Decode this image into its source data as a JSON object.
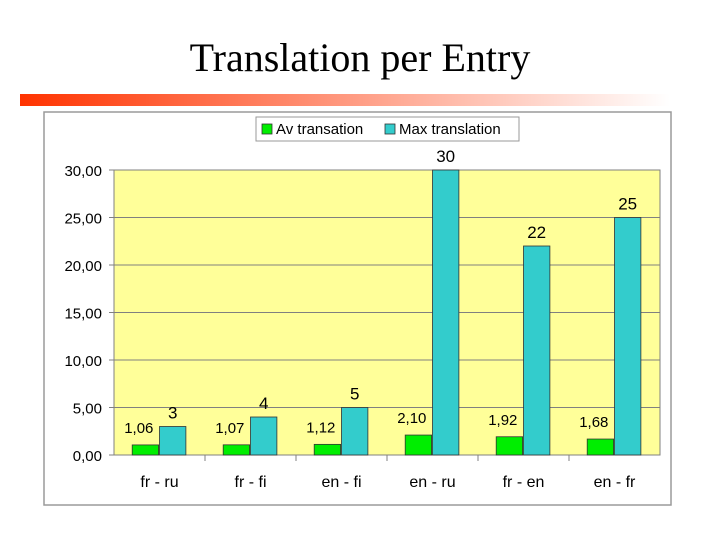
{
  "slide": {
    "title": "Translation per Entry"
  },
  "colors": {
    "plot_bg": "#ffff99",
    "series_av": "#00ee00",
    "series_max": "#33cccc",
    "rule_start": "#ff3300",
    "rule_end": "#ffffff"
  },
  "chart_data": {
    "type": "bar",
    "title": "",
    "xlabel": "",
    "ylabel": "",
    "categories": [
      "fr - ru",
      "fr - fi",
      "en - fi",
      "en - ru",
      "fr - en",
      "en - fr"
    ],
    "series": [
      {
        "name": "Av transation",
        "values": [
          1.06,
          1.07,
          1.12,
          2.1,
          1.92,
          1.68
        ],
        "labels": [
          "1,06",
          "1,07",
          "1,12",
          "2,10",
          "1,92",
          "1,68"
        ]
      },
      {
        "name": "Max translation",
        "values": [
          3,
          4,
          5,
          30,
          22,
          25
        ],
        "labels": [
          "3",
          "4",
          "5",
          "30",
          "22",
          "25"
        ]
      }
    ],
    "yticks": [
      "0,00",
      "5,00",
      "10,00",
      "15,00",
      "20,00",
      "25,00",
      "30,00"
    ],
    "ylim": [
      0,
      30
    ],
    "grid": true,
    "legend": "top-center"
  }
}
